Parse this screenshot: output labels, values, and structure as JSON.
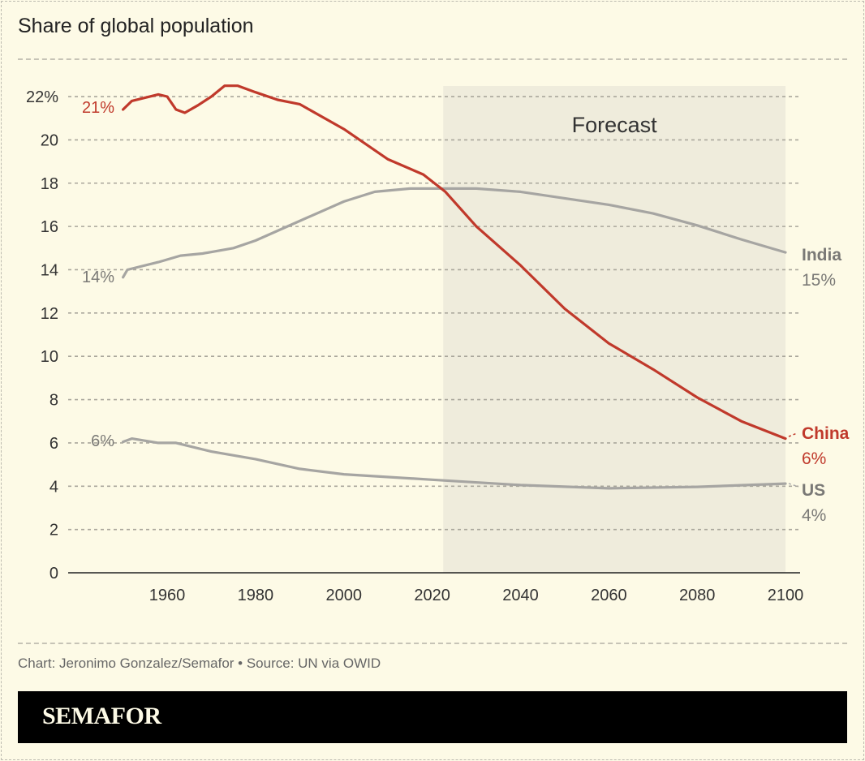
{
  "header": {
    "title": "Share of global population"
  },
  "footer": {
    "credit": "Chart: Jeronimo Gonzalez/Semafor • Source: UN via OWID",
    "brand": "SEMAFOR"
  },
  "colors": {
    "china": "#c0392b",
    "india": "#a6a5a2",
    "us": "#a6a5a2",
    "forecast_bg": "#efecdc",
    "background": "#fdfae6"
  },
  "chart_data": {
    "type": "line",
    "title": "Share of global population",
    "xlim": [
      1950,
      2100
    ],
    "ylim": [
      0,
      22
    ],
    "y_ticks": [
      "0",
      "2",
      "4",
      "6",
      "8",
      "10",
      "12",
      "14",
      "16",
      "18",
      "20",
      "22%"
    ],
    "y_tick_values": [
      0,
      2,
      4,
      6,
      8,
      10,
      12,
      14,
      16,
      18,
      20,
      22
    ],
    "x_ticks": [
      "1960",
      "1980",
      "2000",
      "2020",
      "2040",
      "2060",
      "2080",
      "2100"
    ],
    "x_tick_values": [
      1960,
      1980,
      2000,
      2020,
      2040,
      2060,
      2080,
      2100
    ],
    "grid": true,
    "forecast": {
      "label": "Forecast",
      "from": 2022.5,
      "to": 2100
    },
    "series": [
      {
        "name": "China",
        "start_label": "21%",
        "end_label": "6%",
        "color": "#c0392b",
        "x": [
          1950,
          1952,
          1958,
          1960,
          1962,
          1964,
          1967,
          1970,
          1973,
          1976,
          1980,
          1985,
          1990,
          2000,
          2010,
          2018,
          2023,
          2030,
          2040,
          2050,
          2060,
          2070,
          2080,
          2090,
          2100
        ],
        "y": [
          21.4,
          21.8,
          22.1,
          22.0,
          21.4,
          21.25,
          21.6,
          22.0,
          22.5,
          22.5,
          22.2,
          21.85,
          21.65,
          20.5,
          19.1,
          18.4,
          17.6,
          16.0,
          14.2,
          12.2,
          10.6,
          9.4,
          8.1,
          7.0,
          6.2
        ]
      },
      {
        "name": "India",
        "start_label": "14%",
        "end_label": "15%",
        "color": "#a6a5a2",
        "x": [
          1950,
          1951,
          1958,
          1963,
          1968,
          1975,
          1980,
          1990,
          2000,
          2007,
          2015,
          2030,
          2040,
          2050,
          2060,
          2070,
          2080,
          2090,
          2100
        ],
        "y": [
          13.65,
          14.0,
          14.35,
          14.65,
          14.75,
          15.0,
          15.35,
          16.25,
          17.15,
          17.6,
          17.75,
          17.75,
          17.6,
          17.3,
          17.0,
          16.6,
          16.05,
          15.4,
          14.8
        ]
      },
      {
        "name": "US",
        "start_label": "6%",
        "end_label": "4%",
        "color": "#a6a5a2",
        "x": [
          1950,
          1952,
          1958,
          1962,
          1970,
          1980,
          1990,
          2000,
          2020,
          2040,
          2060,
          2080,
          2100
        ],
        "y": [
          6.05,
          6.2,
          6.0,
          6.0,
          5.6,
          5.25,
          4.8,
          4.55,
          4.3,
          4.05,
          3.9,
          3.97,
          4.12
        ]
      }
    ]
  }
}
